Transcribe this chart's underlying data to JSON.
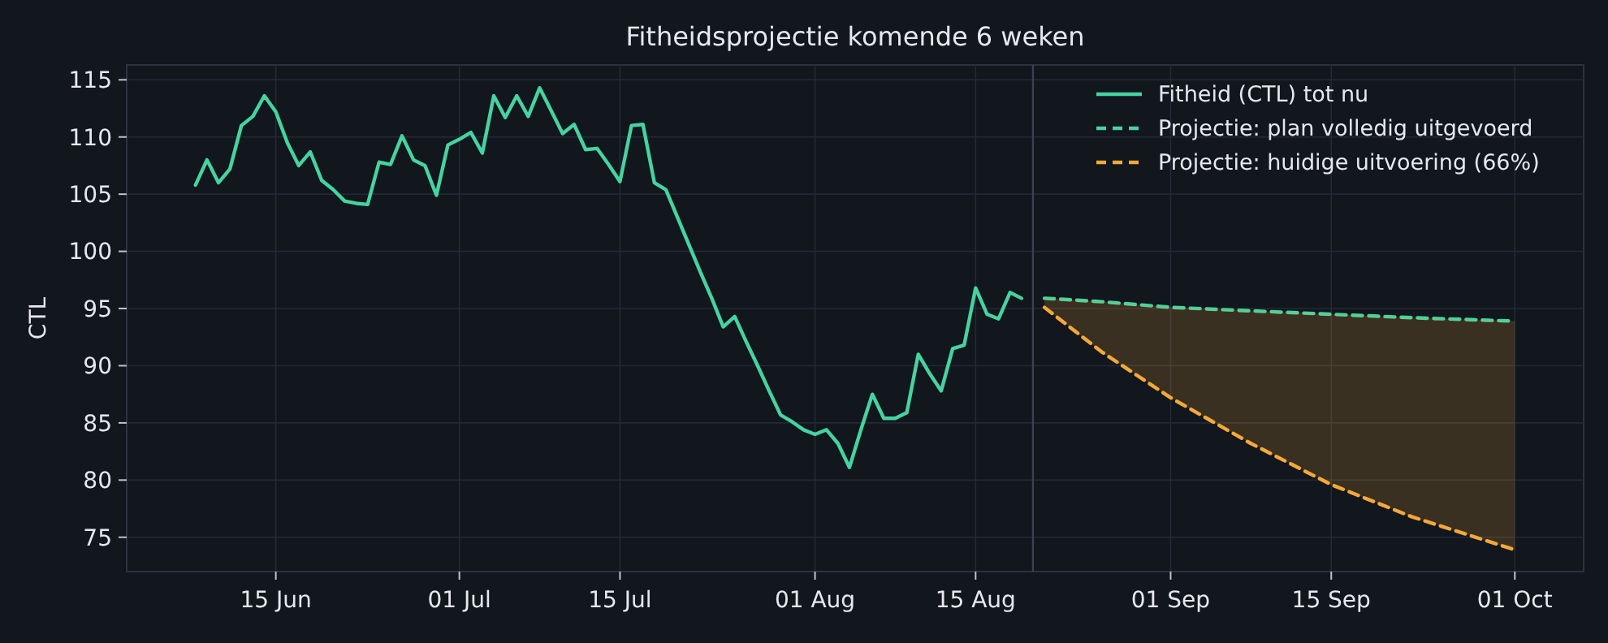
{
  "chart_data": {
    "type": "line",
    "title": "Fitheidsprojectie komende 6 weken",
    "ylabel": "CTL",
    "xlim": [
      "--06-02",
      "--10-07"
    ],
    "ylim": [
      72,
      116.3
    ],
    "xticks": [
      {
        "value": "--06-15",
        "label": "15 Jun"
      },
      {
        "value": "--07-01",
        "label": "01 Jul"
      },
      {
        "value": "--07-15",
        "label": "15 Jul"
      },
      {
        "value": "--08-01",
        "label": "01 Aug"
      },
      {
        "value": "--08-15",
        "label": "15 Aug"
      },
      {
        "value": "--09-01",
        "label": "01 Sep"
      },
      {
        "value": "--09-15",
        "label": "15 Sep"
      },
      {
        "value": "--10-01",
        "label": "01 Oct"
      }
    ],
    "yticks": [
      75,
      80,
      85,
      90,
      95,
      100,
      105,
      110,
      115
    ],
    "grid": true,
    "legend": "top right",
    "ref_lines": [
      {
        "axis": "x",
        "value": "--08-20",
        "color": "#3a4252"
      }
    ],
    "series": [
      {
        "name": "Fitheid (CTL) tot nu",
        "color": "#45d3a0",
        "line_style": "solid",
        "x": [
          "--06-08",
          "--06-09",
          "--06-10",
          "--06-11",
          "--06-12",
          "--06-13",
          "--06-14",
          "--06-15",
          "--06-16",
          "--06-17",
          "--06-18",
          "--06-19",
          "--06-20",
          "--06-21",
          "--06-22",
          "--06-23",
          "--06-24",
          "--06-25",
          "--06-26",
          "--06-27",
          "--06-28",
          "--06-29",
          "--06-30",
          "--07-01",
          "--07-02",
          "--07-03",
          "--07-04",
          "--07-05",
          "--07-06",
          "--07-07",
          "--07-08",
          "--07-09",
          "--07-10",
          "--07-11",
          "--07-12",
          "--07-13",
          "--07-14",
          "--07-15",
          "--07-16",
          "--07-17",
          "--07-18",
          "--07-19",
          "--07-20",
          "--07-21",
          "--07-22",
          "--07-23",
          "--07-24",
          "--07-25",
          "--07-26",
          "--07-27",
          "--07-28",
          "--07-29",
          "--07-30",
          "--07-31",
          "--08-01",
          "--08-02",
          "--08-03",
          "--08-04",
          "--08-05",
          "--08-06",
          "--08-07",
          "--08-08",
          "--08-09",
          "--08-10",
          "--08-11",
          "--08-12",
          "--08-13",
          "--08-14",
          "--08-15",
          "--08-16",
          "--08-17",
          "--08-18",
          "--08-19"
        ],
        "values": [
          105.8,
          108.0,
          106.0,
          107.2,
          111.0,
          111.8,
          113.6,
          112.2,
          109.5,
          107.5,
          108.7,
          106.2,
          105.4,
          104.4,
          104.2,
          104.1,
          107.8,
          107.6,
          110.1,
          108.0,
          107.5,
          104.9,
          109.3,
          109.8,
          110.4,
          108.6,
          113.6,
          111.7,
          113.6,
          111.8,
          114.3,
          112.3,
          110.3,
          111.1,
          108.9,
          109.0,
          107.6,
          106.1,
          111.0,
          111.1,
          106.0,
          105.4,
          103.0,
          100.6,
          98.2,
          95.9,
          93.4,
          94.3,
          92.1,
          90.0,
          87.8,
          85.7,
          85.1,
          84.4,
          84.0,
          84.4,
          83.2,
          81.1,
          84.4,
          87.5,
          85.4,
          85.4,
          85.9,
          91.0,
          89.3,
          87.8,
          91.5,
          91.8,
          96.8,
          94.5,
          94.1,
          96.4,
          95.9
        ]
      },
      {
        "name": "Projectie: plan volledig uitgevoerd",
        "color": "#45d3a0",
        "line_style": "dashed",
        "x": [
          "--08-21",
          "--08-26",
          "--09-01",
          "--09-08",
          "--09-15",
          "--09-22",
          "--10-01"
        ],
        "values": [
          95.9,
          95.6,
          95.1,
          94.8,
          94.5,
          94.2,
          93.9
        ]
      },
      {
        "name": "Projectie: huidige uitvoering (66%)",
        "color": "#f5a83a",
        "line_style": "dashed",
        "x": [
          "--08-21",
          "--08-26",
          "--09-01",
          "--09-08",
          "--09-15",
          "--09-22",
          "--10-01"
        ],
        "values": [
          95.1,
          91.2,
          87.2,
          83.2,
          79.6,
          76.8,
          73.9
        ],
        "lower": [
          95.1,
          91.2,
          87.2,
          83.2,
          79.6,
          76.8,
          73.9
        ],
        "upper": [
          95.9,
          95.6,
          95.1,
          94.8,
          94.5,
          94.2,
          93.9
        ]
      }
    ]
  }
}
